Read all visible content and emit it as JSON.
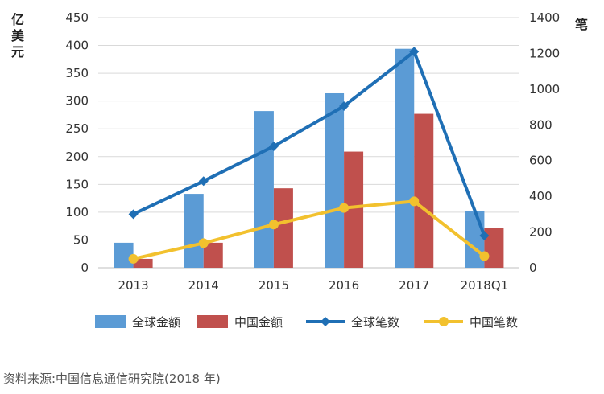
{
  "chart_data": {
    "type": "bar+line",
    "categories": [
      "2013",
      "2014",
      "2015",
      "2016",
      "2017",
      "2018Q1"
    ],
    "y_left": {
      "label": "亿美元",
      "ylim": [
        0,
        450
      ],
      "ticks": [
        0,
        50,
        100,
        150,
        200,
        250,
        300,
        350,
        400,
        450
      ]
    },
    "y_right": {
      "label": "笔",
      "ylim": [
        0,
        1400
      ],
      "ticks": [
        0,
        200,
        400,
        600,
        800,
        1000,
        1200,
        1400
      ]
    },
    "bar_series": [
      {
        "name": "全球金额",
        "color": "#5b9bd5",
        "values": [
          45,
          133,
          282,
          314,
          394,
          102
        ]
      },
      {
        "name": "中国金额",
        "color": "#c0504d",
        "values": [
          16,
          45,
          143,
          209,
          277,
          71
        ]
      }
    ],
    "line_series": [
      {
        "name": "全球笔数",
        "color": "#1f6fb5",
        "values": [
          300,
          485,
          680,
          905,
          1210,
          180
        ]
      },
      {
        "name": "中国笔数",
        "color": "#f2c12e",
        "values": [
          50,
          138,
          242,
          335,
          372,
          65
        ]
      }
    ],
    "legend_position": "bottom",
    "grid": true,
    "source_note": "资料来源:中国信息通信研究院(2018 年)"
  }
}
